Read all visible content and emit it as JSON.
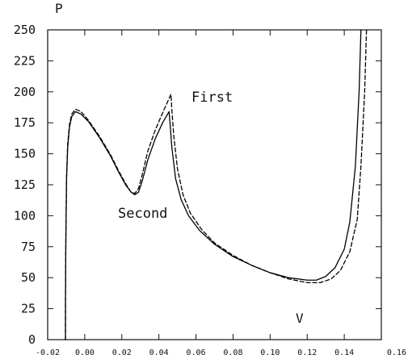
{
  "chart_data": {
    "type": "line",
    "xlabel": "V",
    "ylabel": "P",
    "xlim": [
      -0.02,
      0.16
    ],
    "ylim": [
      0,
      250
    ],
    "xticks": [
      "-0.02",
      "0.00",
      "0.02",
      "0.04",
      "0.06",
      "0.08",
      "0.10",
      "0.12",
      "0.14",
      "0.16"
    ],
    "yticks": [
      "0",
      "25",
      "50",
      "75",
      "100",
      "125",
      "150",
      "175",
      "200",
      "225",
      "250"
    ],
    "grid": false,
    "legend": "none",
    "annotations": [
      "First",
      "Second"
    ],
    "series": [
      {
        "style": "solid",
        "color": "#000000",
        "points": [
          [
            -0.0104,
            0
          ],
          [
            -0.0104,
            30
          ],
          [
            -0.0102,
            80
          ],
          [
            -0.0098,
            130
          ],
          [
            -0.0092,
            155
          ],
          [
            -0.0082,
            172
          ],
          [
            -0.007,
            180
          ],
          [
            -0.005,
            184
          ],
          [
            -0.002,
            182
          ],
          [
            0.002,
            176
          ],
          [
            0.008,
            163
          ],
          [
            0.014,
            148
          ],
          [
            0.018,
            136
          ],
          [
            0.022,
            125
          ],
          [
            0.025,
            119
          ],
          [
            0.027,
            117
          ],
          [
            0.029,
            119
          ],
          [
            0.031,
            128
          ],
          [
            0.034,
            145
          ],
          [
            0.038,
            162
          ],
          [
            0.042,
            175
          ],
          [
            0.0455,
            184
          ],
          [
            0.046,
            175
          ],
          [
            0.047,
            155
          ],
          [
            0.049,
            130
          ],
          [
            0.052,
            113
          ],
          [
            0.056,
            100
          ],
          [
            0.062,
            88
          ],
          [
            0.07,
            77
          ],
          [
            0.08,
            67
          ],
          [
            0.09,
            60
          ],
          [
            0.1,
            54
          ],
          [
            0.11,
            50
          ],
          [
            0.12,
            48
          ],
          [
            0.125,
            48
          ],
          [
            0.13,
            51
          ],
          [
            0.135,
            58
          ],
          [
            0.14,
            73
          ],
          [
            0.143,
            95
          ],
          [
            0.146,
            140
          ],
          [
            0.148,
            200
          ],
          [
            0.149,
            250
          ]
        ]
      },
      {
        "style": "dashed",
        "color": "#000000",
        "points": [
          [
            -0.0104,
            0
          ],
          [
            -0.0104,
            30
          ],
          [
            -0.0102,
            80
          ],
          [
            -0.0098,
            132
          ],
          [
            -0.0092,
            158
          ],
          [
            -0.0082,
            174
          ],
          [
            -0.007,
            182
          ],
          [
            -0.005,
            186
          ],
          [
            -0.002,
            184
          ],
          [
            0.002,
            177
          ],
          [
            0.008,
            164
          ],
          [
            0.014,
            149
          ],
          [
            0.018,
            137
          ],
          [
            0.022,
            126
          ],
          [
            0.025,
            119
          ],
          [
            0.027,
            118
          ],
          [
            0.029,
            122
          ],
          [
            0.031,
            133
          ],
          [
            0.034,
            152
          ],
          [
            0.038,
            169
          ],
          [
            0.042,
            183
          ],
          [
            0.0465,
            198
          ],
          [
            0.047,
            185
          ],
          [
            0.048,
            165
          ],
          [
            0.05,
            138
          ],
          [
            0.053,
            117
          ],
          [
            0.057,
            102
          ],
          [
            0.063,
            89
          ],
          [
            0.07,
            78
          ],
          [
            0.08,
            68
          ],
          [
            0.09,
            60
          ],
          [
            0.1,
            54
          ],
          [
            0.11,
            49
          ],
          [
            0.12,
            46
          ],
          [
            0.127,
            46
          ],
          [
            0.133,
            49
          ],
          [
            0.138,
            56
          ],
          [
            0.143,
            71
          ],
          [
            0.147,
            97
          ],
          [
            0.149,
            140
          ],
          [
            0.151,
            200
          ],
          [
            0.152,
            250
          ]
        ]
      }
    ]
  }
}
